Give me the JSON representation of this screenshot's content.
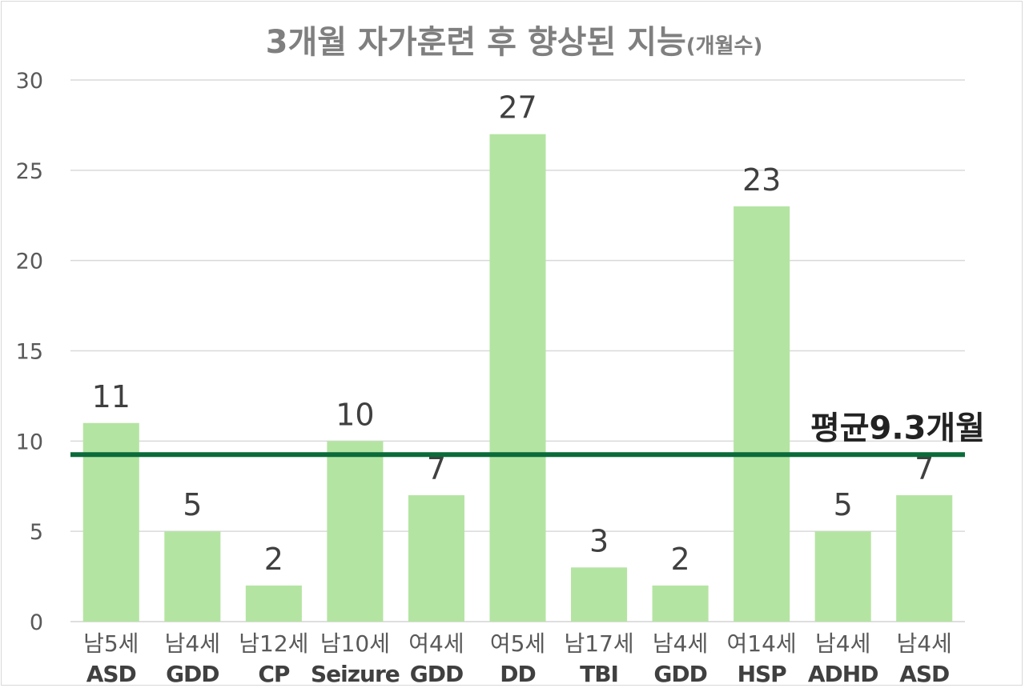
{
  "chart_data": {
    "type": "bar",
    "title": "3개월 자가훈련 후 향상된 지능",
    "title_suffix": "(개월수)",
    "categories": [
      {
        "line1": "남5세",
        "line2": "ASD"
      },
      {
        "line1": "남4세",
        "line2": "GDD"
      },
      {
        "line1": "남12세",
        "line2": "CP"
      },
      {
        "line1": "남10세",
        "line2": "Seizure"
      },
      {
        "line1": "여4세",
        "line2": "GDD"
      },
      {
        "line1": "여5세",
        "line2": "DD"
      },
      {
        "line1": "남17세",
        "line2": "TBI"
      },
      {
        "line1": "남4세",
        "line2": "GDD"
      },
      {
        "line1": "여14세",
        "line2": "HSP"
      },
      {
        "line1": "남4세",
        "line2": "ADHD"
      },
      {
        "line1": "남4세",
        "line2": "ASD"
      }
    ],
    "values": [
      11,
      5,
      2,
      10,
      7,
      27,
      3,
      2,
      23,
      5,
      7
    ],
    "data_labels": [
      "11",
      "5",
      "2",
      "10",
      "7",
      "27",
      "3",
      "2",
      "23",
      "5",
      "7"
    ],
    "ylim": [
      0,
      30
    ],
    "yticks": [
      0,
      5,
      10,
      15,
      20,
      25,
      30
    ],
    "ytick_labels": [
      "0",
      "5",
      "10",
      "15",
      "20",
      "25",
      "30"
    ],
    "grid": true,
    "reference_line": {
      "value": 9.25,
      "label": "평균9.3개월",
      "color": "#0b6b3a"
    },
    "colors": {
      "bar": "#b4e4a2",
      "grid": "#d9d9d9",
      "axis": "#d9d9d9"
    }
  }
}
